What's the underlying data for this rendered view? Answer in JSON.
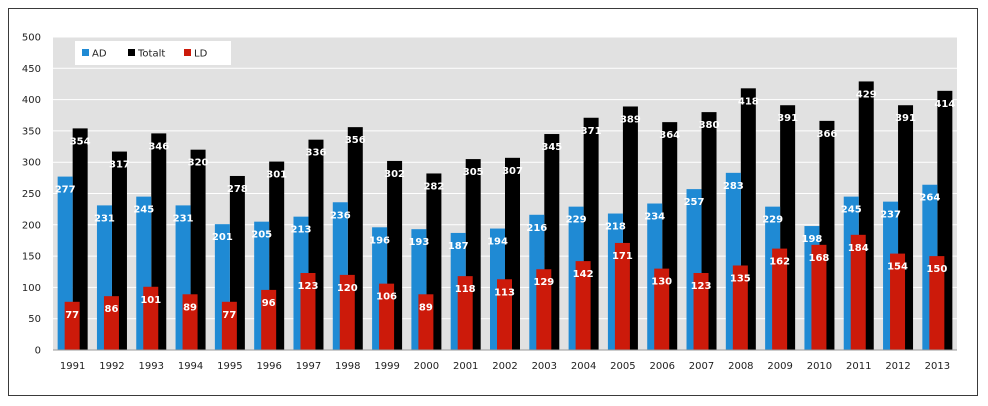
{
  "chart_data": {
    "type": "bar",
    "categories": [
      "1991",
      "1992",
      "1993",
      "1994",
      "1995",
      "1996",
      "1997",
      "1998",
      "1999",
      "2000",
      "2001",
      "2002",
      "2003",
      "2004",
      "2005",
      "2006",
      "2007",
      "2008",
      "2009",
      "2010",
      "2011",
      "2012",
      "2013"
    ],
    "series": [
      {
        "name": "AD",
        "color": "#1f8ad4",
        "values": [
          277,
          231,
          245,
          231,
          201,
          205,
          213,
          236,
          196,
          193,
          187,
          194,
          216,
          229,
          218,
          234,
          257,
          283,
          229,
          198,
          245,
          237,
          264
        ]
      },
      {
        "name": "Totalt",
        "color": "#000000",
        "values": [
          354,
          317,
          346,
          320,
          278,
          301,
          336,
          356,
          302,
          282,
          305,
          307,
          345,
          371,
          389,
          364,
          380,
          418,
          391,
          366,
          429,
          391,
          414
        ]
      },
      {
        "name": "LD",
        "color": "#cc1a0a",
        "values": [
          77,
          86,
          101,
          89,
          77,
          96,
          123,
          120,
          106,
          89,
          118,
          113,
          129,
          142,
          171,
          130,
          123,
          135,
          162,
          168,
          184,
          154,
          150
        ]
      }
    ],
    "ylim": [
      0,
      500
    ],
    "yticks": [
      0,
      50,
      100,
      150,
      200,
      250,
      300,
      350,
      400,
      450,
      500
    ],
    "grid": true,
    "legend_position": "top-left",
    "plot_background": "#e1e1e1",
    "title": "",
    "xlabel": "",
    "ylabel": ""
  }
}
